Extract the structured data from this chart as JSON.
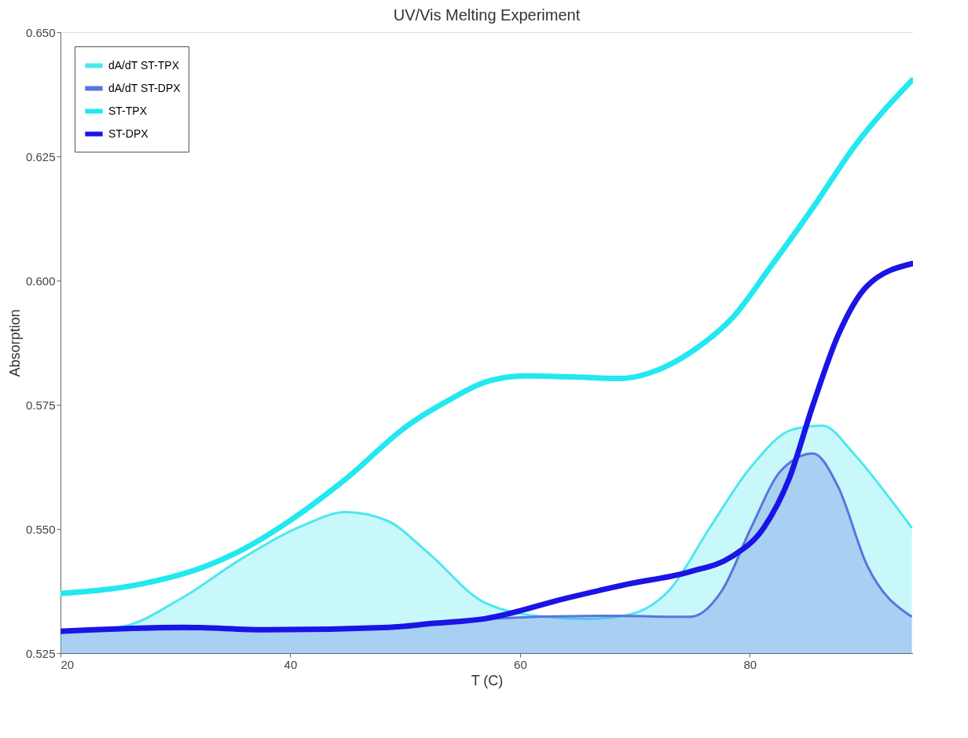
{
  "chart_data": {
    "type": "line",
    "title": "UV/Vis Melting Experiment",
    "xlabel": "T (C)",
    "ylabel": "Absorption",
    "xlim": [
      20,
      94.2
    ],
    "ylim": [
      0.525,
      0.65
    ],
    "xticks": [
      20,
      40,
      60,
      80
    ],
    "yticks": [
      0.525,
      {
        "value": 0.55,
        "label": "0.550"
      },
      0.575,
      {
        "value": 0.6,
        "label": "0.600"
      },
      0.625,
      {
        "value": 0.65,
        "label": "0.650"
      }
    ],
    "grid": false,
    "legend": "top left",
    "line_style": "solid",
    "marker": "none",
    "series": [
      {
        "name": "dA/dT ST-TPX",
        "type": "area",
        "color": "#4de8ee",
        "x": [
          20,
          25.1,
          30.5,
          35.9,
          41.3,
          44.8,
          48.4,
          52.0,
          56.9,
          62.2,
          65.8,
          69.4,
          73.0,
          76.5,
          80.1,
          83.7,
          86.3,
          89.1,
          92.0,
          94.1
        ],
        "values": [
          0.5295,
          0.5302,
          0.536,
          0.5442,
          0.5509,
          0.5534,
          0.5517,
          0.5452,
          0.5352,
          0.5323,
          0.5319,
          0.5327,
          0.5377,
          0.5502,
          0.5625,
          0.57,
          0.5708,
          0.565,
          0.5567,
          0.5502
        ]
      },
      {
        "name": "dA/dT ST-DPX",
        "type": "area",
        "color": "#5a74e0",
        "x": [
          20,
          30,
          40,
          50,
          56.9,
          67.6,
          74.8,
          77.6,
          80.1,
          82.7,
          85.5,
          87.7,
          90.2,
          94.1
        ],
        "values": [
          0.5297,
          0.5298,
          0.5299,
          0.5305,
          0.5319,
          0.5325,
          0.5323,
          0.5377,
          0.5502,
          0.5617,
          0.5652,
          0.5584,
          0.5427,
          0.5323
        ]
      },
      {
        "name": "ST-TPX",
        "type": "line",
        "color": "#22e8f0",
        "x": [
          20,
          27.0,
          32.3,
          35.9,
          39.8,
          44.8,
          50.2,
          53.7,
          57.3,
          60.5,
          64.5,
          68.7,
          72.3,
          75.5,
          78.4,
          81.9,
          85.5,
          89.1,
          94.1
        ],
        "values": [
          0.537,
          0.5389,
          0.5422,
          0.5459,
          0.5514,
          0.56,
          0.5708,
          0.5758,
          0.5798,
          0.5808,
          0.5806,
          0.5803,
          0.5823,
          0.5866,
          0.5923,
          0.6031,
          0.6147,
          0.627,
          0.6403
        ]
      },
      {
        "name": "ST-DPX",
        "type": "line",
        "color": "#1a14e6",
        "x": [
          20,
          30.7,
          37.9,
          48.6,
          52.5,
          56.9,
          64.1,
          69.4,
          74.8,
          78.4,
          81.2,
          83.4,
          85.5,
          87.7,
          90.2,
          94.1
        ],
        "values": [
          0.5294,
          0.5302,
          0.5297,
          0.5302,
          0.531,
          0.5319,
          0.5361,
          0.5389,
          0.5414,
          0.5444,
          0.5502,
          0.56,
          0.575,
          0.5891,
          0.5989,
          0.6034
        ]
      }
    ]
  }
}
